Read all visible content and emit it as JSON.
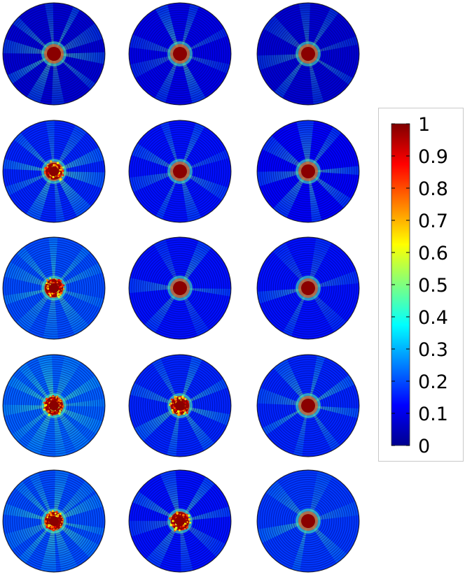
{
  "figure": {
    "rows": 5,
    "cols": 3,
    "panels": [
      {
        "row": 0,
        "col": 0,
        "core": "solid",
        "beams": 10,
        "rot": 8,
        "bg": 0.08,
        "beamStrength": 0.38
      },
      {
        "row": 0,
        "col": 1,
        "core": "solid",
        "beams": 8,
        "rot": 20,
        "bg": 0.1,
        "beamStrength": 0.32
      },
      {
        "row": 0,
        "col": 2,
        "core": "solid",
        "beams": 8,
        "rot": 35,
        "bg": 0.08,
        "beamStrength": 0.3
      },
      {
        "row": 1,
        "col": 0,
        "core": "ring",
        "beams": 10,
        "rot": 12,
        "bg": 0.16,
        "beamStrength": 0.38
      },
      {
        "row": 1,
        "col": 1,
        "core": "solid",
        "beams": 8,
        "rot": 28,
        "bg": 0.14,
        "beamStrength": 0.32
      },
      {
        "row": 1,
        "col": 2,
        "core": "solid",
        "beams": 8,
        "rot": 40,
        "bg": 0.12,
        "beamStrength": 0.3
      },
      {
        "row": 2,
        "col": 0,
        "core": "speckled",
        "beams": 10,
        "rot": 18,
        "bg": 0.2,
        "beamStrength": 0.35
      },
      {
        "row": 2,
        "col": 1,
        "core": "solid",
        "beams": 6,
        "rot": 5,
        "bg": 0.14,
        "beamStrength": 0.28
      },
      {
        "row": 2,
        "col": 2,
        "core": "solid",
        "beams": 6,
        "rot": 50,
        "bg": 0.14,
        "beamStrength": 0.26
      },
      {
        "row": 3,
        "col": 0,
        "core": "speckled",
        "beams": 12,
        "rot": 25,
        "bg": 0.22,
        "beamStrength": 0.4
      },
      {
        "row": 3,
        "col": 1,
        "core": "speckled",
        "beams": 8,
        "rot": 15,
        "bg": 0.16,
        "beamStrength": 0.34
      },
      {
        "row": 3,
        "col": 2,
        "core": "solid",
        "beams": 8,
        "rot": 55,
        "bg": 0.16,
        "beamStrength": 0.34
      },
      {
        "row": 4,
        "col": 0,
        "core": "speckled",
        "beams": 12,
        "rot": 10,
        "bg": 0.2,
        "beamStrength": 0.38
      },
      {
        "row": 4,
        "col": 1,
        "core": "speckled",
        "beams": 8,
        "rot": 33,
        "bg": 0.14,
        "beamStrength": 0.32
      },
      {
        "row": 4,
        "col": 2,
        "core": "solid",
        "beams": 6,
        "rot": 45,
        "bg": 0.18,
        "beamStrength": 0.28
      }
    ]
  },
  "colorbar": {
    "colormap": "jet",
    "min": 0,
    "max": 1,
    "tick_labels": [
      "1",
      "0.9",
      "0.8",
      "0.7",
      "0.6",
      "0.5",
      "0.4",
      "0.3",
      "0.2",
      "0.1",
      "0"
    ],
    "tick_values": [
      1,
      0.9,
      0.8,
      0.7,
      0.6,
      0.5,
      0.4,
      0.3,
      0.2,
      0.1,
      0
    ]
  },
  "colors": {
    "outline": "#222222",
    "panel_border": "#c9c9c9"
  }
}
